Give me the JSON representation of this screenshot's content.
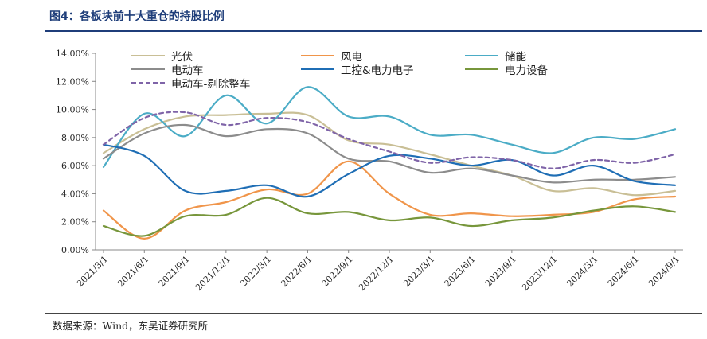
{
  "figure": {
    "title": "图4：各板块前十大重仓的持股比例",
    "source": "数据来源：Wind，东吴证券研究所"
  },
  "chart_data": {
    "type": "line",
    "title": "",
    "xlabel": "",
    "ylabel": "",
    "ylim": [
      0,
      14
    ],
    "yticks": [
      "0.00%",
      "2.00%",
      "4.00%",
      "6.00%",
      "8.00%",
      "10.00%",
      "12.00%",
      "14.00%"
    ],
    "x": [
      "2021/3/1",
      "2021/6/1",
      "2021/9/1",
      "2021/12/1",
      "2022/3/1",
      "2022/6/1",
      "2022/9/1",
      "2022/12/1",
      "2023/3/1",
      "2023/6/1",
      "2023/9/1",
      "2023/12/1",
      "2024/3/1",
      "2024/6/1",
      "2024/9/1"
    ],
    "legend_position": "top",
    "grid": false,
    "series": [
      {
        "name": "光伏",
        "color": "#c9bf96",
        "dash": false,
        "values": [
          6.9,
          8.6,
          9.5,
          9.6,
          9.7,
          9.6,
          7.8,
          7.5,
          6.8,
          6.0,
          5.3,
          4.2,
          4.4,
          3.9,
          4.2
        ]
      },
      {
        "name": "风电",
        "color": "#f0954a",
        "dash": false,
        "values": [
          2.8,
          0.8,
          2.8,
          3.4,
          4.3,
          4.0,
          6.3,
          4.0,
          2.5,
          2.6,
          2.4,
          2.5,
          2.7,
          3.6,
          3.8
        ]
      },
      {
        "name": "储能",
        "color": "#4bacc6",
        "dash": false,
        "values": [
          5.9,
          9.7,
          8.1,
          11.0,
          9.0,
          11.6,
          9.5,
          9.5,
          8.2,
          8.2,
          7.5,
          6.9,
          8.0,
          7.9,
          8.6
        ]
      },
      {
        "name": "电动车",
        "color": "#8c8c8c",
        "dash": false,
        "values": [
          6.5,
          8.3,
          8.9,
          8.1,
          8.6,
          8.3,
          6.5,
          6.3,
          5.5,
          5.8,
          5.3,
          4.8,
          5.0,
          5.0,
          5.2
        ]
      },
      {
        "name": "工控&电力电子",
        "color": "#1f6eb5",
        "dash": false,
        "values": [
          7.5,
          6.7,
          4.2,
          4.2,
          4.6,
          3.8,
          5.4,
          6.7,
          6.5,
          6.0,
          6.4,
          5.3,
          6.0,
          4.9,
          4.6
        ]
      },
      {
        "name": "电力设备",
        "color": "#77963b",
        "dash": false,
        "values": [
          1.7,
          1.0,
          2.4,
          2.5,
          3.7,
          2.6,
          2.7,
          2.1,
          2.3,
          1.7,
          2.1,
          2.3,
          2.8,
          3.1,
          2.7
        ]
      },
      {
        "name": "电动车-剔除整车",
        "color": "#7f64a8",
        "dash": true,
        "values": [
          7.5,
          9.4,
          9.8,
          8.9,
          9.4,
          9.1,
          7.9,
          7.0,
          6.2,
          6.6,
          6.4,
          5.8,
          6.4,
          6.2,
          6.8
        ]
      }
    ]
  }
}
